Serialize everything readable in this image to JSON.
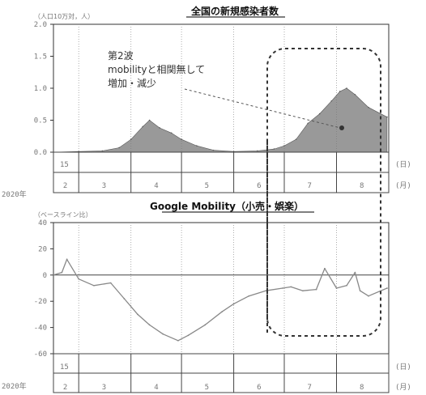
{
  "chart_data": [
    {
      "type": "area",
      "title": "全国の新規感染者数",
      "unit_label": "（人口10万対，人）",
      "ylim": [
        0,
        2.0
      ],
      "yticks": [
        "2.0",
        "1.5",
        "1.0",
        "0.5",
        "0.0"
      ],
      "year_label": "2020年",
      "day_label": "15",
      "month_labels": [
        "2",
        "3",
        "4",
        "5",
        "6",
        "7",
        "8"
      ],
      "axis_day": "(日)",
      "axis_month": "(月)",
      "annotation": [
        "第2波",
        "mobilityと相関無して",
        "増加・減少"
      ],
      "series": [
        {
          "x": [
            "2020-02-15",
            "2020-03-01",
            "2020-03-15",
            "2020-03-25",
            "2020-04-01",
            "2020-04-08",
            "2020-04-12",
            "2020-04-18",
            "2020-04-25",
            "2020-05-01",
            "2020-05-10",
            "2020-05-20",
            "2020-06-01",
            "2020-06-15",
            "2020-06-25",
            "2020-07-01",
            "2020-07-08",
            "2020-07-15",
            "2020-07-22",
            "2020-07-29",
            "2020-08-03",
            "2020-08-07",
            "2020-08-12",
            "2020-08-20",
            "2020-08-31"
          ],
          "values": [
            0.0,
            0.01,
            0.02,
            0.07,
            0.2,
            0.4,
            0.5,
            0.38,
            0.3,
            0.2,
            0.1,
            0.03,
            0.01,
            0.02,
            0.05,
            0.1,
            0.2,
            0.45,
            0.6,
            0.8,
            0.95,
            1.0,
            0.9,
            0.7,
            0.55
          ]
        }
      ]
    },
    {
      "type": "line",
      "title": "Google Mobility（小売・娯楽）",
      "unit_label": "（ベースライン比）",
      "ylim": [
        -60,
        40
      ],
      "yticks": [
        "40",
        "20",
        "0",
        "-20",
        "-40",
        "-60"
      ],
      "year_label": "2020年",
      "day_label": "15",
      "month_labels": [
        "2",
        "3",
        "4",
        "5",
        "6",
        "7",
        "8"
      ],
      "axis_day": "(日)",
      "axis_month": "(月)",
      "series": [
        {
          "x": [
            "2020-02-15",
            "2020-02-20",
            "2020-02-23",
            "2020-03-01",
            "2020-03-10",
            "2020-03-20",
            "2020-03-28",
            "2020-04-05",
            "2020-04-12",
            "2020-04-20",
            "2020-04-29",
            "2020-05-05",
            "2020-05-15",
            "2020-05-25",
            "2020-06-01",
            "2020-06-10",
            "2020-06-20",
            "2020-06-30",
            "2020-07-05",
            "2020-07-12",
            "2020-07-20",
            "2020-07-25",
            "2020-08-01",
            "2020-08-07",
            "2020-08-12",
            "2020-08-15",
            "2020-08-20",
            "2020-08-31"
          ],
          "values": [
            0,
            2,
            12,
            -3,
            -8,
            -6,
            -18,
            -30,
            -38,
            -45,
            -50,
            -46,
            -38,
            -28,
            -22,
            -16,
            -12,
            -10,
            -9,
            -12,
            -11,
            5,
            -10,
            -8,
            2,
            -12,
            -16,
            -10
          ]
        }
      ]
    }
  ]
}
